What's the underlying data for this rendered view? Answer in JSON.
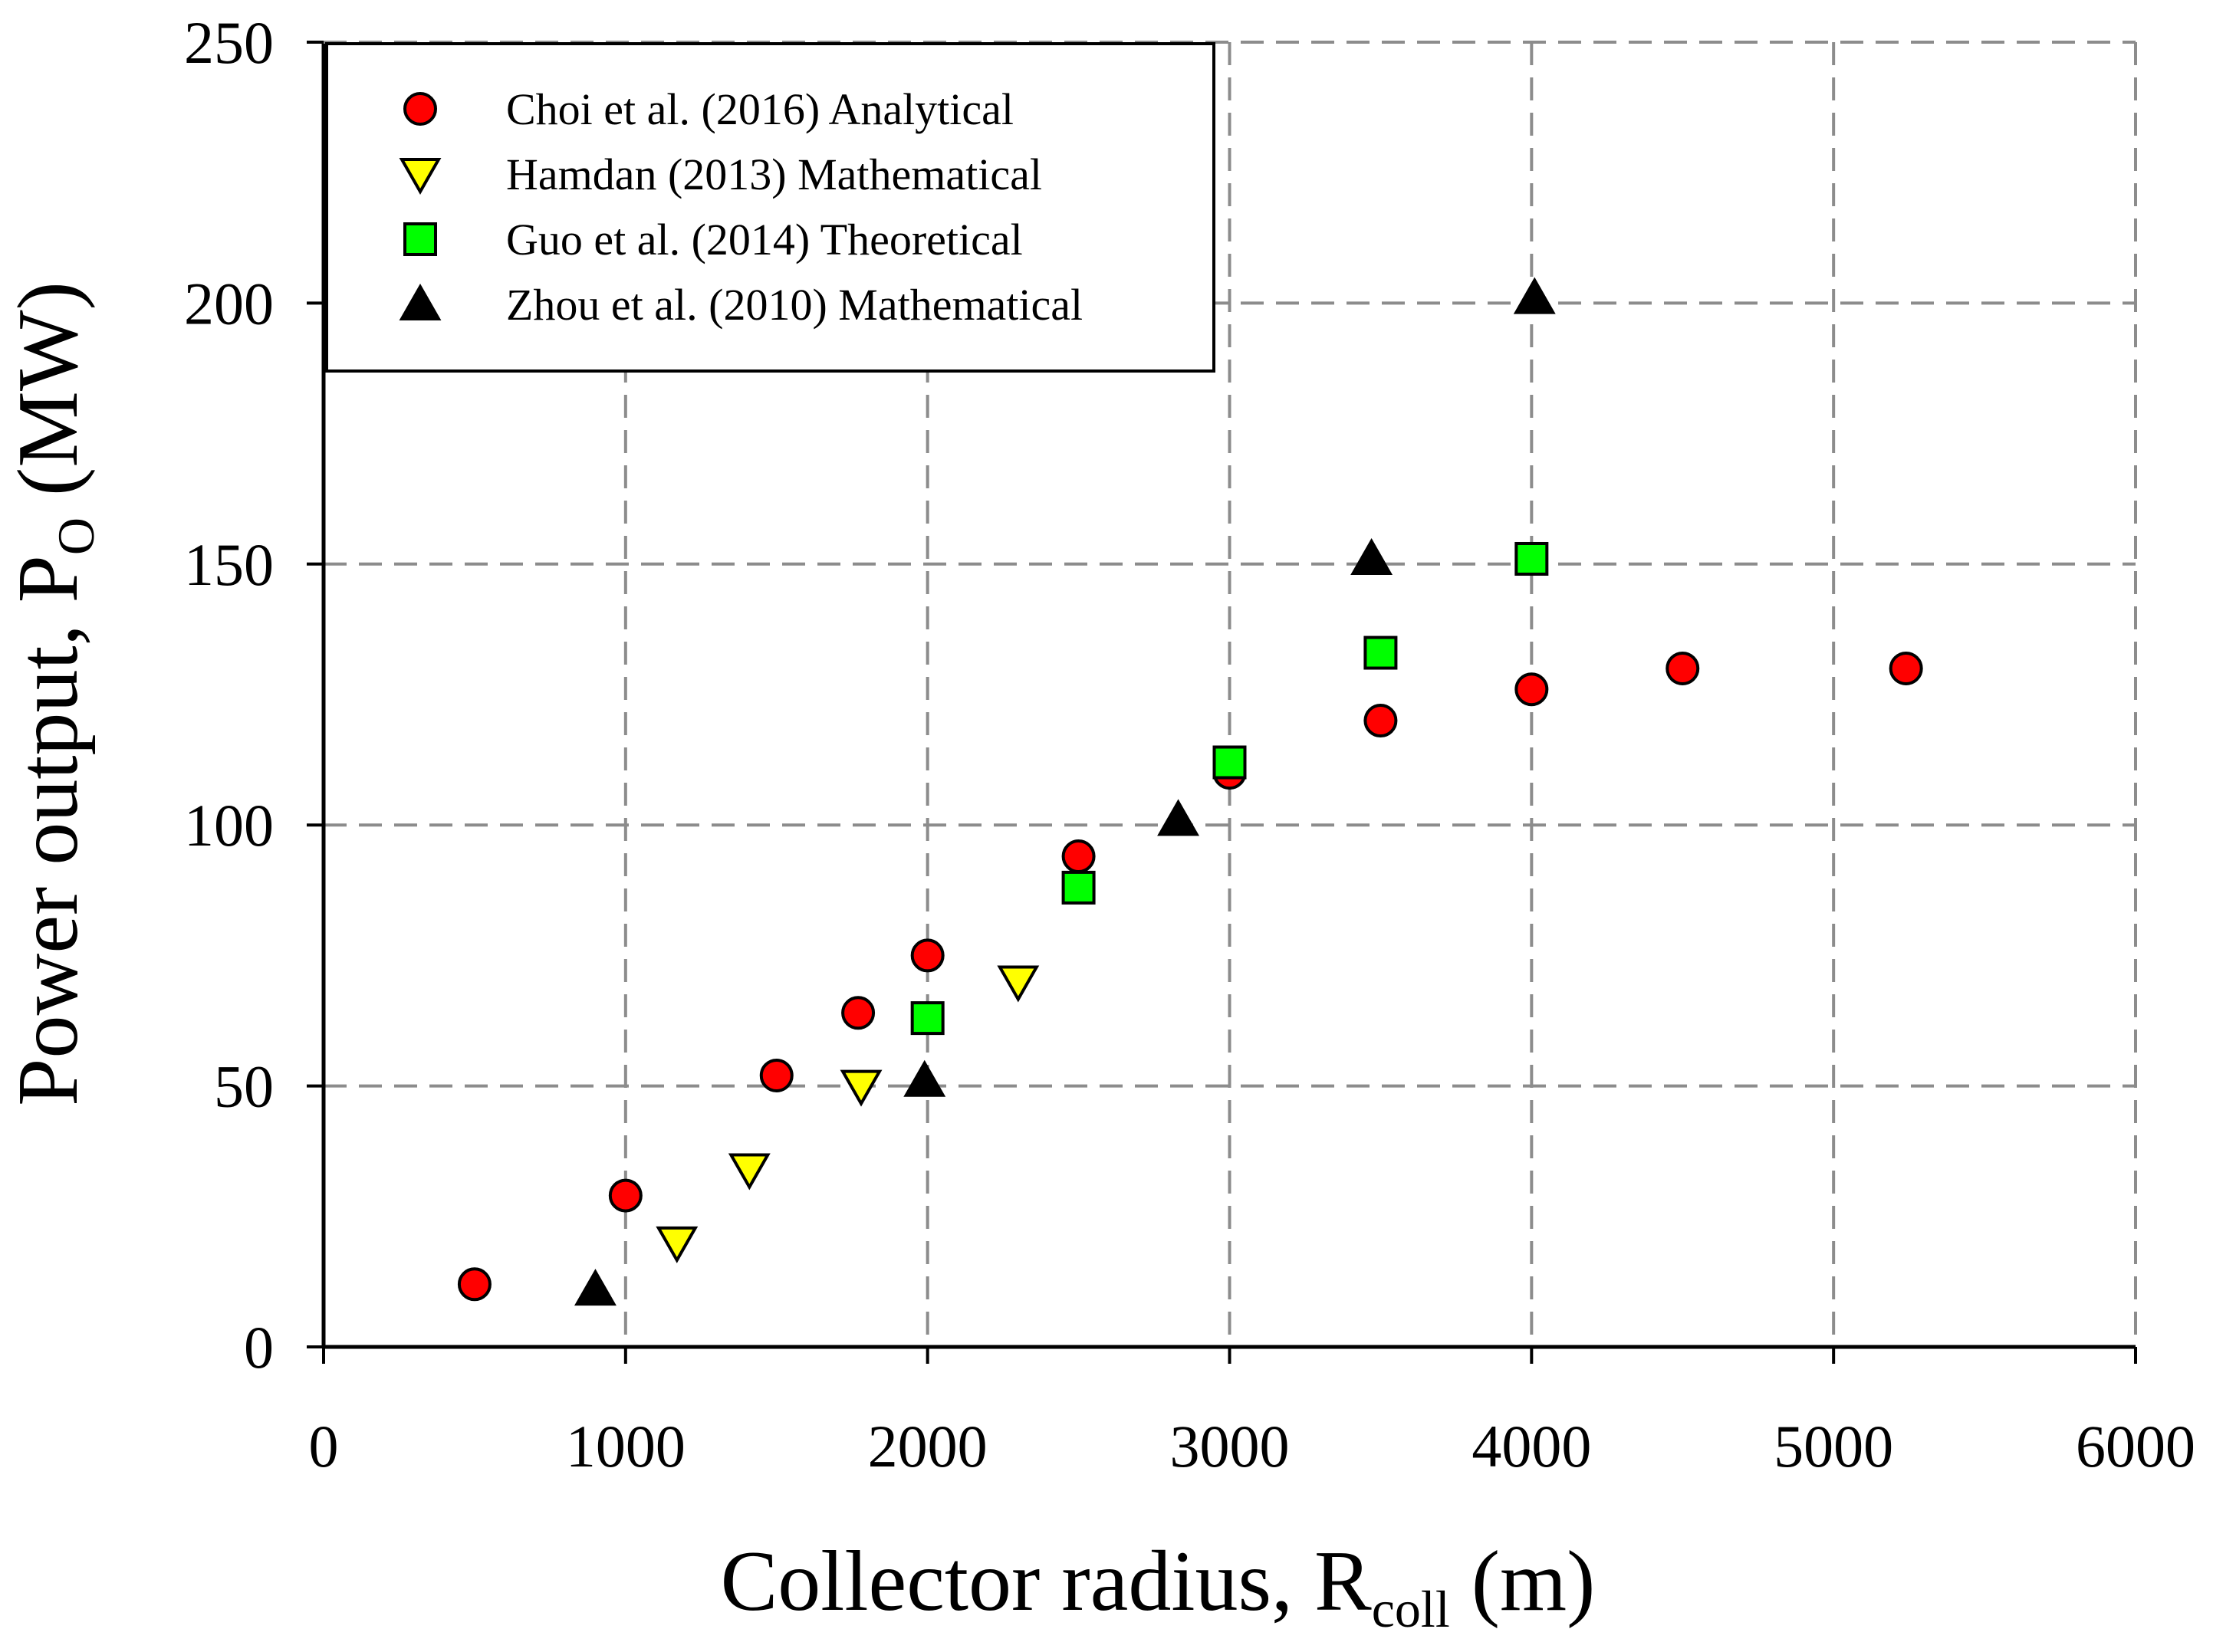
{
  "chart_data": {
    "type": "scatter",
    "title": "",
    "xlabel": {
      "prefix": "Collector radius, R",
      "sub": "coll",
      "suffix": " (m)"
    },
    "ylabel": {
      "prefix": "Power output, P",
      "sub": "O",
      "suffix": " (MW)"
    },
    "xlim": [
      0,
      6000
    ],
    "ylim": [
      0,
      250
    ],
    "xticks": [
      "0",
      "1000",
      "2000",
      "3000",
      "4000",
      "5000",
      "6000"
    ],
    "yticks": [
      "0",
      "50",
      "100",
      "150",
      "200",
      "250"
    ],
    "grid": true,
    "legend_position": "top-left",
    "series": [
      {
        "name": "Choi et al. (2016) Analytical",
        "marker": "circle",
        "color": "#ff0000",
        "points": [
          [
            500,
            12
          ],
          [
            1000,
            29
          ],
          [
            1500,
            52
          ],
          [
            1770,
            64
          ],
          [
            2000,
            75
          ],
          [
            2500,
            94
          ],
          [
            3000,
            110
          ],
          [
            3500,
            120
          ],
          [
            4000,
            126
          ],
          [
            4500,
            130
          ],
          [
            5240,
            130
          ]
        ]
      },
      {
        "name": "Hamdan (2013) Mathematical",
        "marker": "triangle-down",
        "color": "#ffff00",
        "points": [
          [
            1170,
            20
          ],
          [
            1410,
            34
          ],
          [
            1780,
            50
          ],
          [
            2300,
            70
          ]
        ]
      },
      {
        "name": "Guo et al. (2014) Theoretical",
        "marker": "square",
        "color": "#00ff00",
        "points": [
          [
            2000,
            63
          ],
          [
            2500,
            88
          ],
          [
            3000,
            112
          ],
          [
            3500,
            133
          ],
          [
            4000,
            151
          ]
        ]
      },
      {
        "name": "Zhou et al. (2010) Mathematical",
        "marker": "triangle-up",
        "color": "#000000",
        "points": [
          [
            900,
            11
          ],
          [
            1990,
            51
          ],
          [
            2830,
            101
          ],
          [
            3470,
            151
          ],
          [
            4010,
            201
          ]
        ]
      }
    ]
  }
}
